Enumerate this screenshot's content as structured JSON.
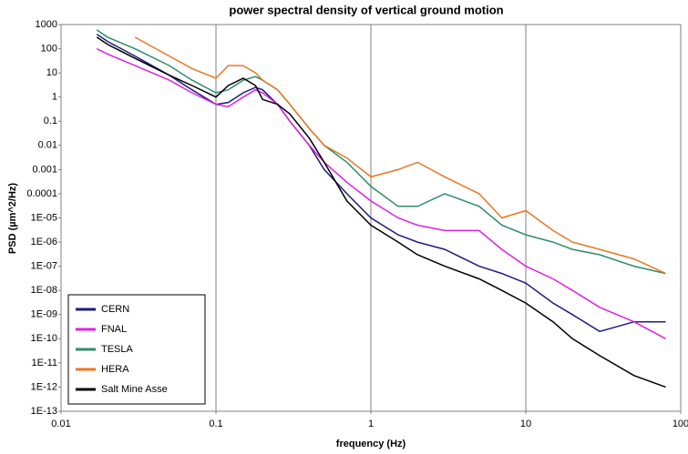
{
  "chart_data": {
    "type": "line",
    "title": "power spectral density of vertical ground motion",
    "x_label": "frequency (Hz)",
    "y_label": "PSD (µm^2/Hz)",
    "x": [
      0.017,
      0.02,
      0.03,
      0.05,
      0.07,
      0.1,
      0.12,
      0.15,
      0.18,
      0.2,
      0.25,
      0.3,
      0.4,
      0.5,
      0.7,
      1,
      1.5,
      2,
      3,
      5,
      7,
      10,
      15,
      20,
      30,
      50,
      80
    ],
    "series": [
      {
        "name": "CERN",
        "color": "#1c1c80",
        "values": [
          400,
          200,
          50,
          8,
          2,
          0.5,
          0.6,
          1.5,
          2.5,
          2,
          0.5,
          0.1,
          0.01,
          0.001,
          0.0001,
          1e-05,
          2e-06,
          1e-06,
          5e-07,
          1e-07,
          5e-08,
          2e-08,
          3e-09,
          1e-09,
          2e-10,
          5e-10,
          5e-10
        ]
      },
      {
        "name": "FNAL",
        "color": "#e020e0",
        "values": [
          100,
          60,
          20,
          5,
          1.5,
          0.5,
          0.4,
          1,
          2,
          1.5,
          0.5,
          0.1,
          0.01,
          0.002,
          0.0003,
          5e-05,
          1e-05,
          5e-06,
          3e-06,
          3e-06,
          5e-07,
          1e-07,
          3e-08,
          1e-08,
          2e-09,
          5e-10,
          1e-10
        ]
      },
      {
        "name": "TESLA",
        "color": "#2e8b6e",
        "values": [
          600,
          300,
          100,
          20,
          5,
          1.5,
          2,
          5,
          7,
          5,
          2,
          0.5,
          0.05,
          0.01,
          0.002,
          0.0002,
          3e-05,
          3e-05,
          0.0001,
          3e-05,
          5e-06,
          2e-06,
          1e-06,
          5e-07,
          3e-07,
          1e-07,
          5e-08
        ]
      },
      {
        "name": "HERA",
        "color": "#e87722",
        "values": [
          null,
          null,
          300,
          50,
          15,
          6,
          20,
          20,
          10,
          5,
          2,
          0.5,
          0.05,
          0.01,
          0.003,
          0.0005,
          0.001,
          0.002,
          0.0005,
          0.0001,
          1e-05,
          2e-05,
          3e-06,
          1e-06,
          5e-07,
          2e-07,
          5e-08
        ]
      },
      {
        "name": "Salt Mine Asse",
        "color": "#000000",
        "values": [
          300,
          150,
          40,
          8,
          3,
          1,
          3,
          6,
          3,
          0.8,
          0.5,
          0.2,
          0.02,
          0.002,
          5e-05,
          5e-06,
          1e-06,
          3e-07,
          1e-07,
          3e-08,
          1e-08,
          3e-09,
          5e-10,
          1e-10,
          2e-11,
          3e-12,
          1e-12
        ]
      }
    ],
    "xlim": [
      0.01,
      100
    ],
    "ylim": [
      1e-13,
      1000
    ],
    "xticks": [
      0.01,
      0.1,
      1,
      10,
      100
    ],
    "yticks": [
      1000,
      100,
      10,
      1,
      0.1,
      0.01,
      0.001,
      0.0001,
      {
        "value": 1e-05,
        "label": "1E-05"
      },
      {
        "value": 1e-06,
        "label": "1E-06"
      },
      {
        "value": 1e-07,
        "label": "1E-07"
      },
      {
        "value": 1e-08,
        "label": "1E-08"
      },
      {
        "value": 1e-09,
        "label": "1E-09"
      },
      {
        "value": 1e-10,
        "label": "1E-10"
      },
      {
        "value": 1e-11,
        "label": "1E-11"
      },
      {
        "value": 1e-12,
        "label": "1E-12"
      },
      {
        "value": 1e-13,
        "label": "1E-13"
      }
    ],
    "x_scale": "log",
    "y_scale": "log",
    "grid": "x",
    "legend": "lower left"
  }
}
